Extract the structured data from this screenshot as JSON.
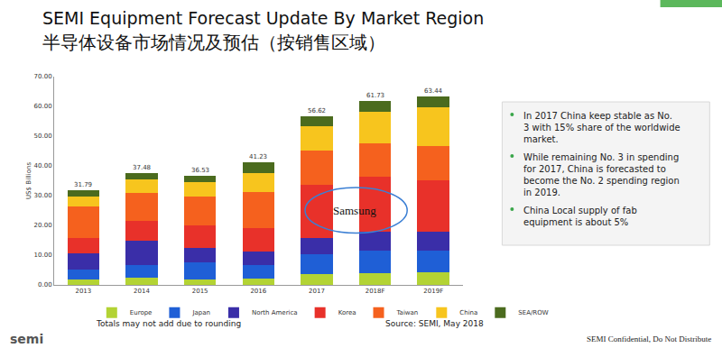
{
  "chart_data": {
    "type": "bar",
    "stacked": true,
    "title": "SEMI Equipment Forecast Update By Market Region",
    "subtitle": "半导体设备市场情况及预估（按销售区域）",
    "y_label": "US$ Billions",
    "categories": [
      "2013",
      "2014",
      "2015",
      "2016",
      "2017",
      "2018F",
      "2019F"
    ],
    "series": [
      {
        "name": "Europe",
        "color": "#b3d334",
        "values": [
          1.91,
          2.38,
          1.94,
          2.17,
          3.67,
          4.0,
          4.2
        ]
      },
      {
        "name": "Japan",
        "color": "#1f5fd6",
        "values": [
          3.38,
          4.18,
          5.49,
          4.63,
          6.49,
          7.6,
          7.3
        ]
      },
      {
        "name": "North America",
        "color": "#3a2ea8",
        "values": [
          5.28,
          8.16,
          5.12,
          4.49,
          5.59,
          6.3,
          6.3
        ]
      },
      {
        "name": "Korea",
        "color": "#e8312a",
        "values": [
          5.2,
          6.84,
          7.47,
          7.69,
          17.95,
          18.6,
          17.3
        ]
      },
      {
        "name": "Taiwan",
        "color": "#f5611e",
        "values": [
          10.57,
          9.41,
          9.64,
          12.23,
          11.49,
          11.2,
          11.5
        ]
      },
      {
        "name": "China",
        "color": "#f7c51e",
        "values": [
          3.37,
          4.37,
          4.9,
          6.46,
          8.23,
          10.6,
          13.2
        ]
      },
      {
        "name": "SEA/ROW",
        "color": "#4b6b1e",
        "values": [
          2.08,
          2.15,
          1.97,
          3.57,
          3.2,
          3.43,
          3.64
        ]
      }
    ],
    "totals": [
      31.79,
      37.48,
      36.53,
      41.23,
      56.62,
      61.73,
      63.44
    ],
    "ylim": [
      0,
      70
    ],
    "yticks": [
      {
        "value": 0,
        "label": "0.00"
      },
      {
        "value": 10,
        "label": "10.00"
      },
      {
        "value": 20,
        "label": "20.00"
      },
      {
        "value": 30,
        "label": "30.00"
      },
      {
        "value": 40,
        "label": "40.00"
      },
      {
        "value": 50,
        "label": "50.00"
      },
      {
        "value": 60,
        "label": "60.00"
      },
      {
        "value": 70,
        "label": "70.00"
      }
    ],
    "grid": false,
    "legend": "bottom",
    "annotations": [
      {
        "text": "Samsung",
        "category": "2017"
      }
    ],
    "bullets": [
      "In 2017 China keep stable as No. 3 with 15% share of the worldwide market.",
      "While remaining No. 3 in spending for 2017, China is forecasted to become the No. 2 spending region in 2019.",
      "China Local supply of fab equipment is about 5%"
    ],
    "footnote": "Totals may not add due to rounding",
    "source": "Source: SEMI, May 2018",
    "confidential": "SEMI Confidential, Do Not Distribute",
    "logo": "semi"
  }
}
